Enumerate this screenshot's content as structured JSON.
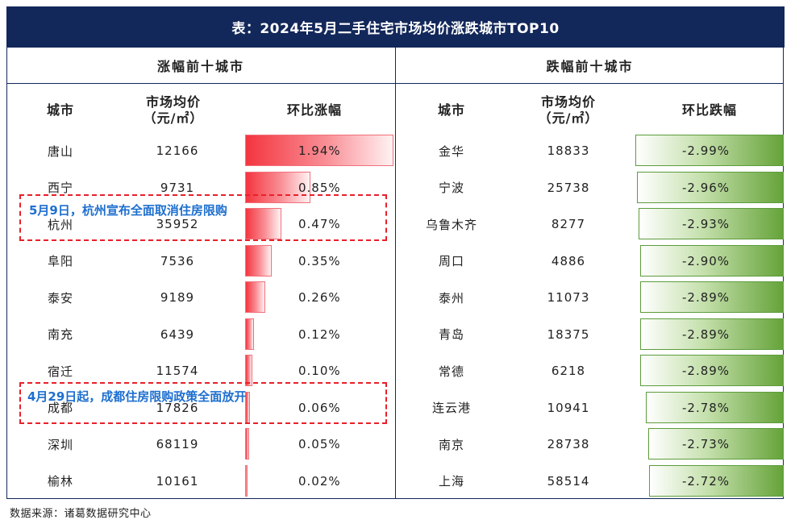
{
  "chart_data": {
    "type": "table",
    "title": "表：2024年5月二手住宅市场均价涨跌城市TOP10",
    "rise_table": {
      "heading": "涨幅前十城市",
      "columns": [
        "城市",
        "市场均价",
        "（元/㎡）",
        "环比涨幅"
      ],
      "rows": [
        {
          "city": "唐山",
          "price": "12166",
          "change": 1.94,
          "label": "1.94%"
        },
        {
          "city": "西宁",
          "price": "9731",
          "change": 0.85,
          "label": "0.85%"
        },
        {
          "city": "杭州",
          "price": "35952",
          "change": 0.47,
          "label": "0.47%"
        },
        {
          "city": "阜阳",
          "price": "7536",
          "change": 0.35,
          "label": "0.35%"
        },
        {
          "city": "泰安",
          "price": "9189",
          "change": 0.26,
          "label": "0.26%"
        },
        {
          "city": "南充",
          "price": "6439",
          "change": 0.12,
          "label": "0.12%"
        },
        {
          "city": "宿迁",
          "price": "11574",
          "change": 0.1,
          "label": "0.10%"
        },
        {
          "city": "成都",
          "price": "17826",
          "change": 0.06,
          "label": "0.06%"
        },
        {
          "city": "深圳",
          "price": "68119",
          "change": 0.05,
          "label": "0.05%"
        },
        {
          "city": "榆林",
          "price": "10161",
          "change": 0.02,
          "label": "0.02%"
        }
      ]
    },
    "fall_table": {
      "heading": "跌幅前十城市",
      "columns": [
        "城市",
        "市场均价",
        "（元/㎡）",
        "环比跌幅"
      ],
      "rows": [
        {
          "city": "金华",
          "price": "18833",
          "change": -2.99,
          "label": "-2.99%"
        },
        {
          "city": "宁波",
          "price": "25738",
          "change": -2.96,
          "label": "-2.96%"
        },
        {
          "city": "乌鲁木齐",
          "price": "8277",
          "change": -2.93,
          "label": "-2.93%"
        },
        {
          "city": "周口",
          "price": "4886",
          "change": -2.9,
          "label": "-2.90%"
        },
        {
          "city": "泰州",
          "price": "11073",
          "change": -2.89,
          "label": "-2.89%"
        },
        {
          "city": "青岛",
          "price": "18375",
          "change": -2.89,
          "label": "-2.89%"
        },
        {
          "city": "常德",
          "price": "6218",
          "change": -2.89,
          "label": "-2.89%"
        },
        {
          "city": "连云港",
          "price": "10941",
          "change": -2.78,
          "label": "-2.78%"
        },
        {
          "city": "南京",
          "price": "28738",
          "change": -2.73,
          "label": "-2.73%"
        },
        {
          "city": "上海",
          "price": "58514",
          "change": -2.72,
          "label": "-2.72%"
        }
      ]
    },
    "annotations": [
      {
        "text": "5月9日，杭州宣布全面取消住房限购"
      },
      {
        "text": "4月29日起，成都住房限购政策全面放开"
      }
    ],
    "rise_color": "#f4353f",
    "fall_color": "#66a33a"
  },
  "source": "数据来源：诸葛数据研究中心"
}
